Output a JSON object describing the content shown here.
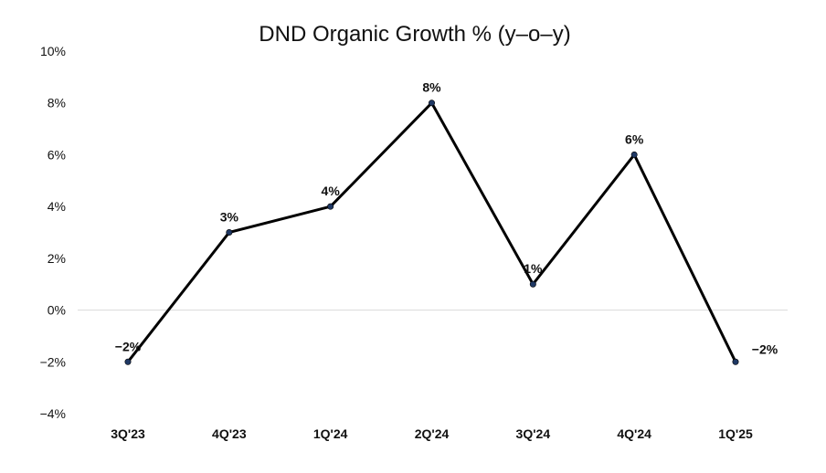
{
  "chart_data": {
    "type": "line",
    "title": "DND Organic Growth % (y–o–y)",
    "xlabel": "",
    "ylabel": "",
    "categories": [
      "3Q'23",
      "4Q'23",
      "1Q'24",
      "2Q'24",
      "3Q'24",
      "4Q'24",
      "1Q'25"
    ],
    "series": [
      {
        "name": "DND Organic Growth",
        "values": [
          -2,
          3,
          4,
          8,
          1,
          6,
          -2
        ]
      }
    ],
    "data_labels": [
      "−2%",
      "3%",
      "4%",
      "8%",
      "1%",
      "6%",
      "−2%"
    ],
    "ylim": [
      -4,
      10
    ],
    "yticks": [
      10,
      8,
      6,
      4,
      2,
      0,
      -2,
      -4
    ],
    "ytick_labels": [
      "10%",
      "8%",
      "6%",
      "4%",
      "2%",
      "0%",
      "−2%",
      "−4%"
    ],
    "grid": false,
    "zero_line": true,
    "colors": {
      "line": "#000000",
      "marker": "#1f3864",
      "zero_line": "#d9d9d9",
      "text": "#111111"
    }
  }
}
